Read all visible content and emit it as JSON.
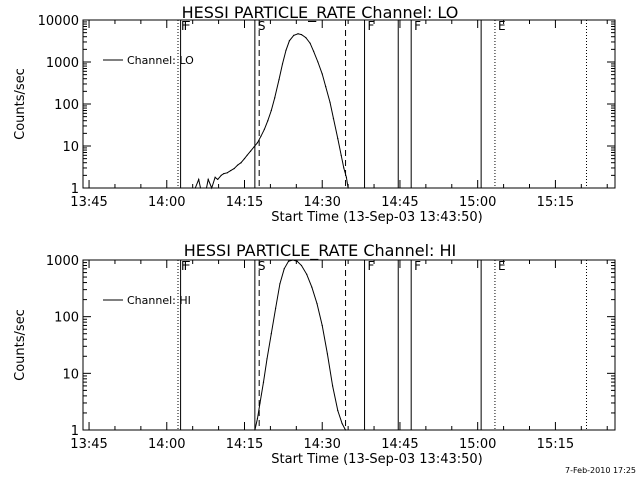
{
  "chart_data": [
    {
      "type": "line",
      "title": "HESSI PARTICLE_RATE Channel: LO",
      "xlabel": "Start Time (13-Sep-03 13:43:50)",
      "ylabel": "Counts/sec",
      "yscale": "log",
      "ylim": [
        1,
        10000
      ],
      "y_ticks": [
        "1",
        "10",
        "100",
        "1000",
        "10000"
      ],
      "xlim": [
        "13:43:50",
        "15:26:30"
      ],
      "x_ticks": [
        "13:45",
        "14:00",
        "14:15",
        "14:30",
        "14:45",
        "15:00",
        "15:15"
      ],
      "legend": {
        "placement": "top-left",
        "entries": [
          "Channel: LO"
        ]
      },
      "grid": false,
      "series": [
        {
          "name": "Channel: LO",
          "x": [
            "14:05:30",
            "14:06:10",
            "14:06:30",
            "14:07:40",
            "14:08:00",
            "14:08:40",
            "14:09:20",
            "14:09:50",
            "14:10:30",
            "14:11:00",
            "14:11:40",
            "14:12:20",
            "14:13:00",
            "14:13:40",
            "14:14:20",
            "14:15:00",
            "14:15:30",
            "14:16:10",
            "14:16:50",
            "14:17:30",
            "14:18:10",
            "14:18:50",
            "14:19:30",
            "14:20:10",
            "14:20:50",
            "14:21:40",
            "14:22:20",
            "14:23:00",
            "14:23:40",
            "14:24:30",
            "14:25:20",
            "14:26:00",
            "14:26:50",
            "14:27:40",
            "14:28:20",
            "14:29:10",
            "14:30:00",
            "14:30:40",
            "14:31:30",
            "14:32:10",
            "14:33:00",
            "14:33:40",
            "14:34:10",
            "14:34:40",
            "14:35:00"
          ],
          "values": [
            1.0,
            1.6,
            1.0,
            1.0,
            1.6,
            1.0,
            1.8,
            1.6,
            2.0,
            2.2,
            2.3,
            2.6,
            2.9,
            3.5,
            4.0,
            5.0,
            6.0,
            7.5,
            9.5,
            12,
            17,
            25,
            40,
            70,
            140,
            380,
            900,
            1900,
            3200,
            4300,
            4700,
            4500,
            3800,
            2800,
            1800,
            1000,
            520,
            260,
            110,
            45,
            15,
            6,
            3,
            1.8,
            1.0
          ]
        }
      ],
      "markers": [
        {
          "label": "F",
          "x": "14:02:10",
          "style": "dotted"
        },
        {
          "label": "F",
          "x": "14:02:40",
          "style": "solid"
        },
        {
          "label": "S",
          "x": "14:17:00",
          "style": "solid"
        },
        {
          "label": "",
          "x": "14:17:50",
          "style": "dashed"
        },
        {
          "label": "",
          "x": "14:34:30",
          "style": "dashed"
        },
        {
          "label": "F",
          "x": "14:38:10",
          "style": "solid"
        },
        {
          "label": "",
          "x": "14:44:40",
          "style": "solid"
        },
        {
          "label": "F",
          "x": "14:47:10",
          "style": "solid"
        },
        {
          "label": "",
          "x": "15:00:40",
          "style": "solid"
        },
        {
          "label": "E",
          "x": "15:03:20",
          "style": "dotted"
        },
        {
          "label": "",
          "x": "15:21:00",
          "style": "dotted"
        }
      ]
    },
    {
      "type": "line",
      "title": "HESSI PARTICLE_RATE Channel: HI",
      "xlabel": "Start Time (13-Sep-03 13:43:50)",
      "ylabel": "Counts/sec",
      "yscale": "log",
      "ylim": [
        1,
        1000
      ],
      "y_ticks": [
        "1",
        "10",
        "100",
        "1000"
      ],
      "xlim": [
        "13:43:50",
        "15:26:30"
      ],
      "x_ticks": [
        "13:45",
        "14:00",
        "14:15",
        "14:30",
        "14:45",
        "15:00",
        "15:15"
      ],
      "legend": {
        "placement": "top-left",
        "entries": [
          "Channel: HI"
        ]
      },
      "grid": false,
      "series": [
        {
          "name": "Channel: HI",
          "x": [
            "14:17:00",
            "14:17:30",
            "14:18:00",
            "14:18:40",
            "14:19:20",
            "14:20:10",
            "14:21:00",
            "14:21:50",
            "14:22:40",
            "14:23:30",
            "14:24:20",
            "14:25:10",
            "14:26:00",
            "14:27:00",
            "14:28:00",
            "14:29:00",
            "14:30:00",
            "14:31:00",
            "14:32:00",
            "14:33:00",
            "14:33:50",
            "14:34:30"
          ],
          "values": [
            1.0,
            1.6,
            3,
            7,
            18,
            50,
            140,
            380,
            700,
            950,
            1000,
            950,
            800,
            560,
            330,
            170,
            70,
            22,
            6,
            2.2,
            1.3,
            1.0
          ]
        }
      ],
      "markers": [
        {
          "label": "F",
          "x": "14:02:10",
          "style": "dotted"
        },
        {
          "label": "F",
          "x": "14:02:40",
          "style": "solid"
        },
        {
          "label": "S",
          "x": "14:17:00",
          "style": "solid"
        },
        {
          "label": "",
          "x": "14:17:50",
          "style": "dashed"
        },
        {
          "label": "",
          "x": "14:34:30",
          "style": "dashed"
        },
        {
          "label": "F",
          "x": "14:38:10",
          "style": "solid"
        },
        {
          "label": "",
          "x": "14:44:40",
          "style": "solid"
        },
        {
          "label": "F",
          "x": "14:47:10",
          "style": "solid"
        },
        {
          "label": "",
          "x": "15:00:40",
          "style": "solid"
        },
        {
          "label": "E",
          "x": "15:03:20",
          "style": "dotted"
        },
        {
          "label": "",
          "x": "15:21:00",
          "style": "dotted"
        }
      ]
    }
  ],
  "footer": {
    "text": "7-Feb-2010 17:25"
  }
}
